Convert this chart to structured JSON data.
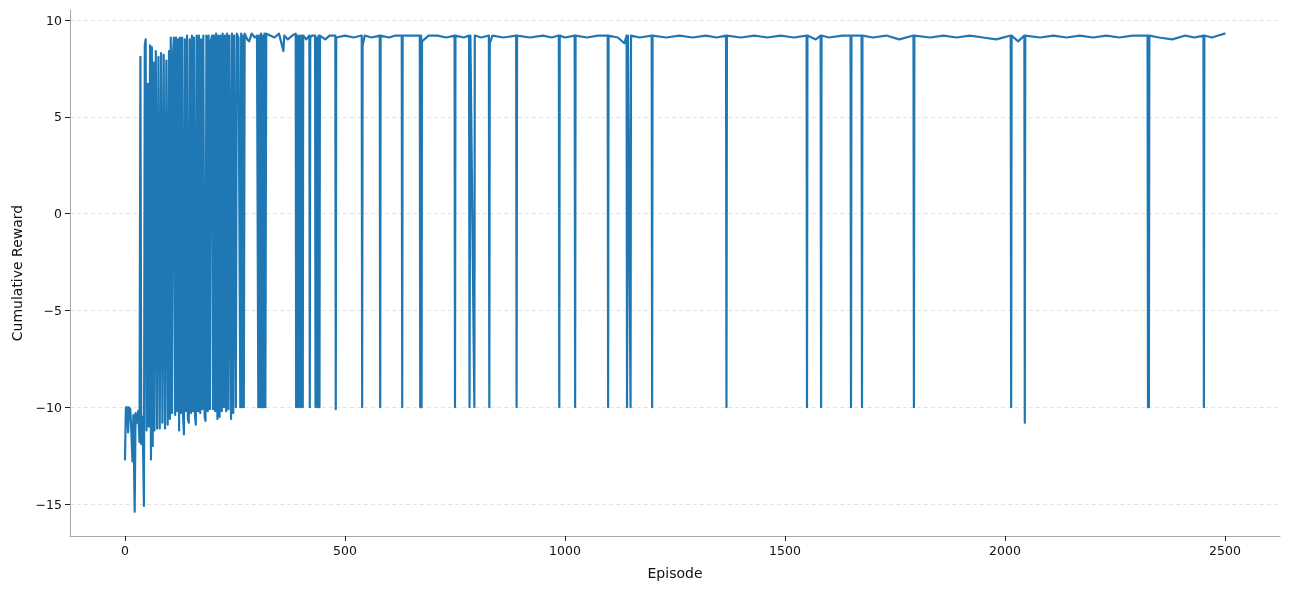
{
  "chart_data": {
    "type": "line",
    "xlabel": "Episode",
    "ylabel": "Cumulative Reward",
    "color": "#1f77b4",
    "marker": "none",
    "grid": "y",
    "xlim": [
      -125,
      2625
    ],
    "ylim": [
      -16.65,
      10.52
    ],
    "xticks": [
      0,
      500,
      1000,
      1500,
      2000,
      2500
    ],
    "yticks": [
      {
        "value": -15,
        "label": "−15"
      },
      {
        "value": -10,
        "label": "−10"
      },
      {
        "value": -5,
        "label": "−5"
      },
      0,
      5,
      10
    ],
    "x": [
      0,
      2,
      5,
      7,
      9,
      12,
      14,
      17,
      19,
      22,
      24,
      27,
      30,
      33,
      35,
      37,
      40,
      43,
      45,
      47,
      49,
      52,
      54,
      57,
      59,
      61,
      63,
      65,
      67,
      70,
      73,
      76,
      79,
      82,
      85,
      88,
      91,
      94,
      97,
      100,
      102,
      104,
      107,
      109,
      111,
      114,
      116,
      119,
      121,
      123,
      125,
      128,
      130,
      132,
      134,
      136,
      139,
      141,
      143,
      145,
      147,
      150,
      152,
      155,
      157,
      159,
      161,
      163,
      166,
      168,
      171,
      173,
      176,
      178,
      181,
      183,
      185,
      188,
      190,
      193,
      195,
      198,
      200,
      202,
      205,
      207,
      210,
      212,
      215,
      217,
      220,
      222,
      225,
      227,
      230,
      232,
      235,
      237,
      241,
      243,
      246,
      248,
      252,
      254,
      258,
      262,
      264,
      266,
      268,
      270,
      272,
      278,
      282,
      288,
      295,
      300,
      303,
      305,
      307,
      309,
      311,
      313,
      315,
      317,
      319,
      321,
      330,
      340,
      350,
      360,
      362,
      370,
      380,
      388,
      389,
      391,
      394,
      396,
      399,
      401,
      404,
      405,
      412,
      419,
      420,
      421,
      425,
      432,
      433,
      435,
      438,
      440,
      442,
      443,
      455,
      465,
      478,
      479,
      480,
      500,
      520,
      538,
      539,
      540,
      545,
      560,
      579,
      580,
      581,
      600,
      615,
      629,
      630,
      631,
      650,
      670,
      671,
      673,
      674,
      675,
      690,
      710,
      730,
      749,
      750,
      751,
      770,
      782,
      783,
      785,
      794,
      795,
      810,
      827,
      828,
      829,
      835,
      860,
      889,
      890,
      891,
      920,
      950,
      970,
      986,
      987,
      988,
      1000,
      1022,
      1023,
      1024,
      1050,
      1075,
      1097,
      1098,
      1099,
      1120,
      1135,
      1140,
      1141,
      1143,
      1149,
      1150,
      1170,
      1197,
      1198,
      1199,
      1230,
      1260,
      1290,
      1320,
      1345,
      1366,
      1367,
      1368,
      1400,
      1430,
      1460,
      1490,
      1520,
      1549,
      1550,
      1551,
      1570,
      1581,
      1582,
      1583,
      1600,
      1630,
      1649,
      1650,
      1651,
      1674,
      1675,
      1676,
      1700,
      1730,
      1760,
      1792,
      1793,
      1794,
      1830,
      1860,
      1890,
      1920,
      1950,
      1980,
      2013,
      2014,
      2015,
      2030,
      2044,
      2045,
      2046,
      2080,
      2110,
      2140,
      2170,
      2200,
      2230,
      2260,
      2290,
      2324,
      2325,
      2326,
      2327,
      2328,
      2350,
      2380,
      2410,
      2430,
      2451,
      2452,
      2453,
      2470,
      2485,
      2499
    ],
    "values": [
      -12.7,
      -10.0,
      -10.0,
      -11.3,
      -10.0,
      -10.1,
      -11.0,
      -12.8,
      -10.4,
      -15.4,
      -10.3,
      -10.8,
      -10.2,
      -11.8,
      8.1,
      -11.9,
      -10.5,
      -15.1,
      8.7,
      9.0,
      -11.2,
      6.7,
      -11.0,
      8.7,
      -12.7,
      8.6,
      -12.0,
      7.8,
      -11.2,
      8.4,
      -11.1,
      8.1,
      -11.1,
      8.3,
      -10.8,
      8.2,
      -11.1,
      7.9,
      -10.9,
      8.4,
      -10.6,
      9.1,
      -10.3,
      8.2,
      9.1,
      -10.4,
      9.1,
      -10.2,
      9.0,
      -11.2,
      9.1,
      -10.3,
      9.1,
      -10.5,
      -11.4,
      9.0,
      -10.2,
      9.2,
      -10.6,
      -10.8,
      9.0,
      -10.3,
      9.2,
      -10.2,
      9.1,
      -10.4,
      -10.9,
      9.2,
      -10.2,
      9.2,
      -10.3,
      9.0,
      -10.1,
      9.2,
      -10.5,
      -10.7,
      9.2,
      -10.2,
      9.2,
      -10.1,
      8.9,
      9.2,
      -10.1,
      9.2,
      -10.2,
      9.3,
      -10.6,
      9.2,
      -10.5,
      9.2,
      -10.2,
      9.3,
      -10.0,
      9.2,
      -10.2,
      9.3,
      -10.1,
      9.2,
      -10.6,
      9.3,
      -10.3,
      9.2,
      -10.0,
      9.3,
      9.1,
      -10.0,
      9.3,
      -10.0,
      9.2,
      -10.0,
      9.3,
      9.0,
      8.9,
      9.3,
      9.1,
      9.2,
      -10.0,
      9.2,
      -10.0,
      9.3,
      -10.0,
      9.2,
      -10.0,
      9.3,
      -10.0,
      9.3,
      9.2,
      9.1,
      9.3,
      8.4,
      9.2,
      9.0,
      9.2,
      9.3,
      -10.0,
      9.2,
      -10.0,
      9.2,
      -10.0,
      9.2,
      -10.0,
      9.2,
      9.0,
      9.2,
      -10.0,
      9.1,
      9.2,
      9.2,
      -10.0,
      9.1,
      -10.0,
      9.2,
      -10.0,
      9.2,
      9.0,
      9.2,
      9.2,
      -10.1,
      9.1,
      9.2,
      9.1,
      9.2,
      -10.0,
      8.7,
      9.2,
      9.1,
      9.2,
      -10.0,
      9.2,
      9.1,
      9.2,
      9.2,
      -10.0,
      9.2,
      9.2,
      9.2,
      -10.0,
      9.2,
      -10.0,
      8.9,
      9.2,
      9.2,
      9.1,
      9.2,
      -10.0,
      9.2,
      9.1,
      9.2,
      -10.0,
      9.2,
      -10.0,
      9.2,
      9.1,
      9.2,
      -10.0,
      8.8,
      9.2,
      9.1,
      9.2,
      -10.0,
      9.2,
      9.1,
      9.2,
      9.1,
      9.2,
      -10.0,
      9.2,
      9.1,
      9.2,
      -10.0,
      9.2,
      9.1,
      9.2,
      9.2,
      -10.0,
      9.2,
      9.1,
      8.8,
      9.2,
      -10.0,
      9.2,
      -10.0,
      9.2,
      9.1,
      9.2,
      -10.0,
      9.2,
      9.1,
      9.2,
      9.1,
      9.2,
      9.1,
      9.2,
      -10.0,
      9.2,
      9.1,
      9.2,
      9.1,
      9.2,
      9.1,
      9.2,
      -10.0,
      9.2,
      9.0,
      9.2,
      -10.0,
      9.2,
      9.1,
      9.2,
      9.2,
      -10.0,
      9.2,
      9.2,
      -10.0,
      9.2,
      9.1,
      9.2,
      9.0,
      9.2,
      -10.0,
      9.2,
      9.1,
      9.2,
      9.1,
      9.2,
      9.1,
      9.0,
      9.2,
      -10.0,
      9.2,
      8.9,
      9.2,
      -10.8,
      9.2,
      9.1,
      9.2,
      9.1,
      9.2,
      9.1,
      9.2,
      9.1,
      9.2,
      9.2,
      -10.0,
      9.2,
      -10.0,
      9.2,
      9.1,
      9.0,
      9.2,
      9.1,
      9.2,
      -10.0,
      9.2,
      9.1,
      9.2,
      9.3
    ]
  }
}
